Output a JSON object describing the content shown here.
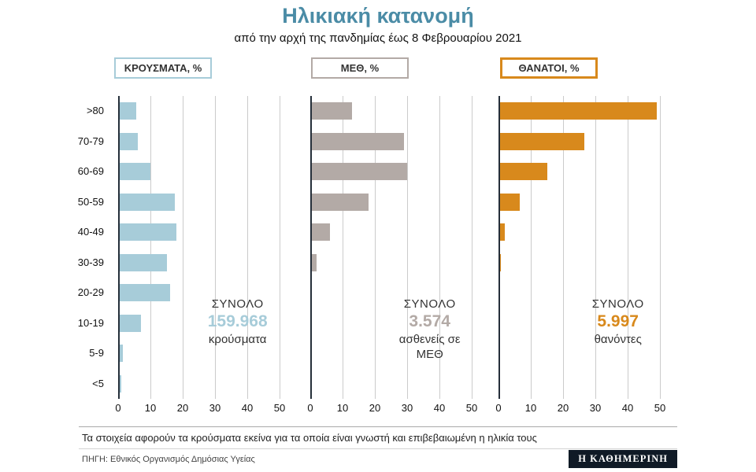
{
  "header": {
    "title": "Ηλικιακή κατανομή",
    "subtitle": "από την αρχή της πανδημίας έως 8 Φεβρουαρίου 2021"
  },
  "colors": {
    "title_teal": "#4b8ca6",
    "cases": "#a7ccd9",
    "icu": "#b3aaa6",
    "deaths": "#d8891c",
    "axis": "#252f3a",
    "gridline": "#cbcbcb"
  },
  "chart_data": {
    "type": "bar",
    "orientation": "horizontal",
    "title": "Ηλικιακή κατανομή",
    "subtitle": "από την αρχή της πανδημίας έως 8 Φεβρουαρίου 2021",
    "categories": [
      ">80",
      "70-79",
      "60-69",
      "50-59",
      "40-49",
      "30-39",
      "20-29",
      "10-19",
      "5-9",
      "<5"
    ],
    "x_ticks": [
      0,
      10,
      20,
      30,
      40,
      50
    ],
    "xlim": [
      0,
      50
    ],
    "grid": true,
    "series": [
      {
        "name": "ΚΡΟΥΣΜΑΤΑ, %",
        "color": "#a7ccd9",
        "values": [
          5.5,
          6,
          10,
          17.5,
          18,
          15,
          16,
          7,
          1.5,
          1
        ],
        "total_label": "ΣΥΝΟΛΟ",
        "total_value": "159.968",
        "total_unit": "κρούσματα"
      },
      {
        "name": "ΜΕΘ, %",
        "color": "#b3aaa6",
        "values": [
          13,
          29,
          30,
          18,
          6,
          2,
          0.5,
          0.3,
          0.2,
          0.3
        ],
        "total_label": "ΣΥΝΟΛΟ",
        "total_value": "3.574",
        "total_unit": "ασθενείς σε ΜΕΘ"
      },
      {
        "name": "ΘΑΝΑΤΟΙ, %",
        "color": "#d8891c",
        "values": [
          49,
          26.5,
          15,
          6.5,
          2,
          0.7,
          0.3,
          0.1,
          0.1,
          0.1
        ],
        "total_label": "ΣΥΝΟΛΟ",
        "total_value": "5.997",
        "total_unit": "θανόντες"
      }
    ]
  },
  "footer": {
    "note": "Τα στοιχεία αφορούν τα κρούσματα εκείνα για τα οποία είναι γνωστή και επιβεβαιωμένη η ηλικία τους",
    "source": "ΠΗΓΗ: Εθνικός Οργανισμός Δημόσιας Υγείας",
    "brand": "Η ΚΑΘΗΜΕΡΙΝΗ"
  }
}
